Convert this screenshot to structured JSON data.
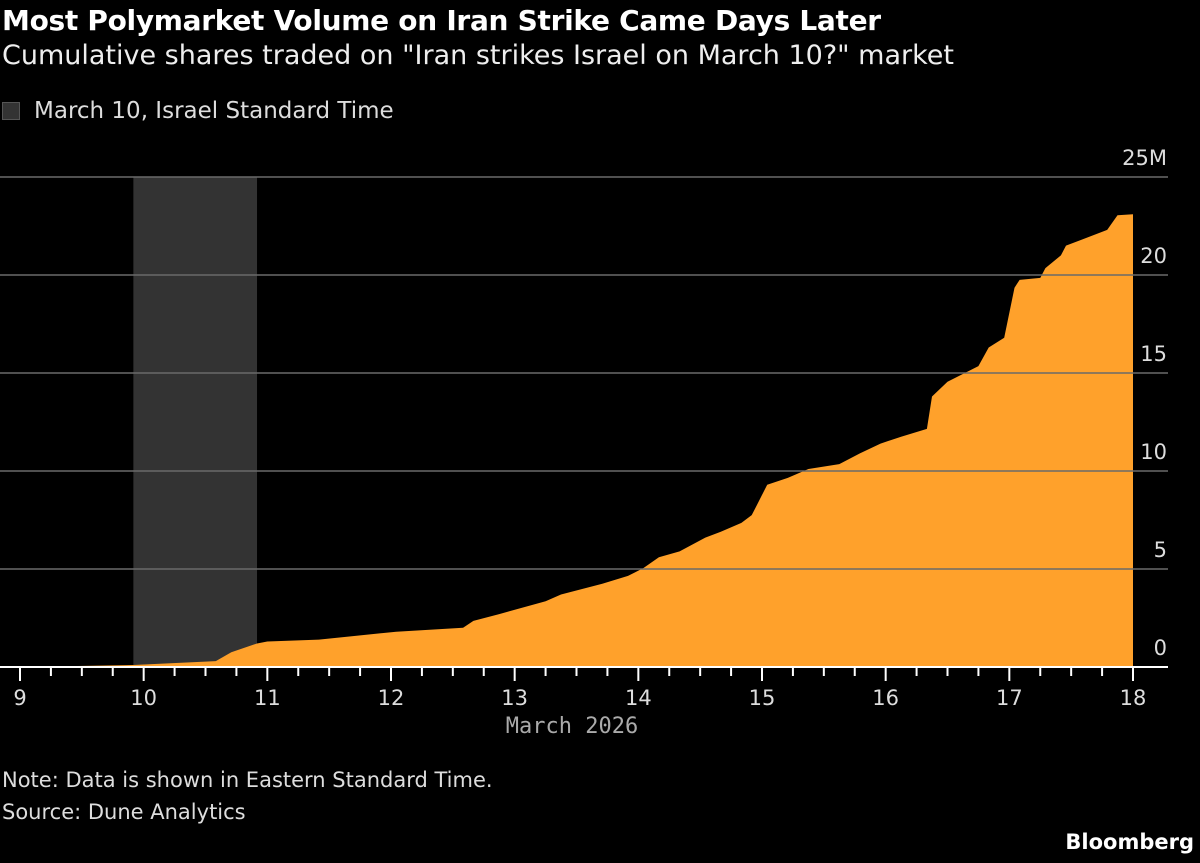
{
  "header": {
    "title": "Most Polymarket Volume on Iran Strike Came Days Later",
    "subtitle": "Cumulative shares traded on \"Iran strikes Israel on March 10?\" market"
  },
  "footer": {
    "note": "Note: Data is shown in Eastern Standard Time.",
    "source": "Source: Dune Analytics",
    "brand": "Bloomberg"
  },
  "chart_data": {
    "type": "area",
    "title": "Most Polymarket Volume on Iran Strike Came Days Later",
    "subtitle": "Cumulative shares traded on \"Iran strikes Israel on March 10?\" market",
    "xlabel": "March 2026",
    "ylabel": "",
    "xlim": [
      "2026-03-09T00:00",
      "2026-03-18T00:00"
    ],
    "ylim": [
      0,
      25
    ],
    "x_ticks": [
      "9",
      "10",
      "11",
      "12",
      "13",
      "14",
      "15",
      "16",
      "17",
      "18"
    ],
    "y_ticks": [
      "0",
      "5",
      "10",
      "15",
      "20",
      "25M"
    ],
    "grid": true,
    "y_axis_side": "right",
    "legend": {
      "placement": "top-left",
      "entries": [
        {
          "label": "March 10, Israel Standard Time",
          "color": "#333333"
        }
      ]
    },
    "shaded_band": {
      "label": "March 10, Israel Standard Time",
      "start": "2026-03-09T22:00",
      "end": "2026-03-10T22:00",
      "color": "#333333"
    },
    "series": [
      {
        "color": "#FFA12B",
        "unit": "million shares",
        "points": [
          [
            "2026-03-09T00:00",
            0.0
          ],
          [
            "2026-03-09T22:00",
            0.1
          ],
          [
            "2026-03-10T14:00",
            0.3
          ],
          [
            "2026-03-10T17:00",
            0.75
          ],
          [
            "2026-03-10T22:00",
            1.2
          ],
          [
            "2026-03-11T00:00",
            1.3
          ],
          [
            "2026-03-11T10:00",
            1.4
          ],
          [
            "2026-03-12T01:00",
            1.8
          ],
          [
            "2026-03-12T14:00",
            2.0
          ],
          [
            "2026-03-12T16:00",
            2.35
          ],
          [
            "2026-03-12T21:00",
            2.7
          ],
          [
            "2026-03-13T06:00",
            3.35
          ],
          [
            "2026-03-13T09:00",
            3.7
          ],
          [
            "2026-03-13T17:00",
            4.25
          ],
          [
            "2026-03-13T22:00",
            4.65
          ],
          [
            "2026-03-14T01:00",
            5.05
          ],
          [
            "2026-03-14T04:00",
            5.6
          ],
          [
            "2026-03-14T08:00",
            5.9
          ],
          [
            "2026-03-14T13:00",
            6.6
          ],
          [
            "2026-03-14T16:00",
            6.9
          ],
          [
            "2026-03-14T20:00",
            7.35
          ],
          [
            "2026-03-14T22:00",
            7.75
          ],
          [
            "2026-03-14T23:00",
            8.25
          ],
          [
            "2026-03-15T01:00",
            9.3
          ],
          [
            "2026-03-15T05:00",
            9.65
          ],
          [
            "2026-03-15T09:00",
            10.1
          ],
          [
            "2026-03-15T15:00",
            10.35
          ],
          [
            "2026-03-15T19:00",
            10.9
          ],
          [
            "2026-03-15T23:00",
            11.4
          ],
          [
            "2026-03-16T03:00",
            11.75
          ],
          [
            "2026-03-16T08:00",
            12.15
          ],
          [
            "2026-03-16T09:00",
            13.8
          ],
          [
            "2026-03-16T12:00",
            14.55
          ],
          [
            "2026-03-16T18:00",
            15.35
          ],
          [
            "2026-03-16T20:00",
            16.3
          ],
          [
            "2026-03-16T23:00",
            16.8
          ],
          [
            "2026-03-17T01:00",
            19.35
          ],
          [
            "2026-03-17T02:00",
            19.75
          ],
          [
            "2026-03-17T06:00",
            19.85
          ],
          [
            "2026-03-17T07:00",
            20.35
          ],
          [
            "2026-03-17T10:00",
            21.0
          ],
          [
            "2026-03-17T11:00",
            21.5
          ],
          [
            "2026-03-17T14:00",
            21.8
          ],
          [
            "2026-03-17T19:00",
            22.3
          ],
          [
            "2026-03-17T21:00",
            23.05
          ],
          [
            "2026-03-18T00:00",
            23.1
          ]
        ]
      }
    ]
  }
}
